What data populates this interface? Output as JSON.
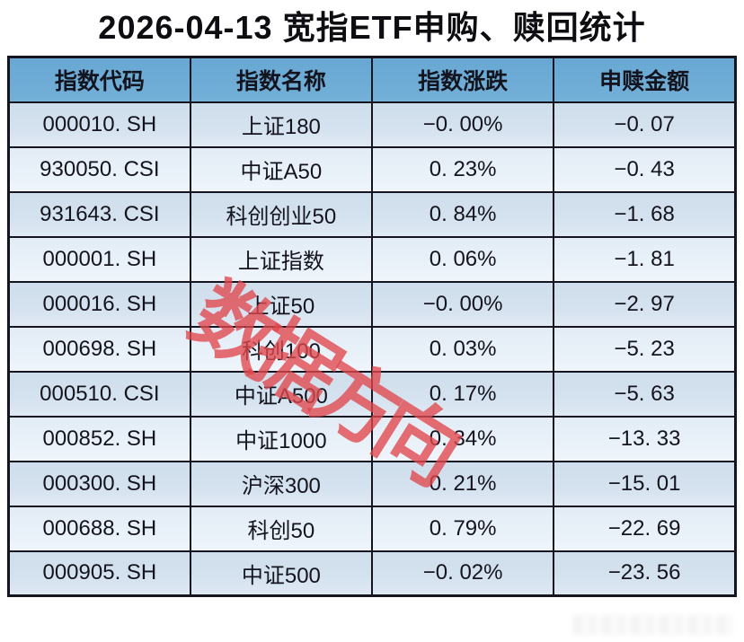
{
  "page": {
    "background": "#ffffff"
  },
  "watermark": {
    "text": "数据方向",
    "color": "#e0464c"
  },
  "faint_watermark": {
    "description": "illegible faint gray watermark, bottom-right corner"
  },
  "styles": {
    "header_bg": "#67a8d3",
    "row_odd_bg": "#d5e2ef",
    "row_even_bg": "#e9f1f9",
    "border_color": "#15151f",
    "text_color": "#14141e"
  },
  "chart_data": {
    "type": "table",
    "title": "2026-04-13 宽指ETF申购、赎回统计",
    "columns": [
      "指数代码",
      "指数名称",
      "指数涨跌",
      "申赎金额"
    ],
    "column_keys": [
      "code",
      "name",
      "change",
      "amount"
    ],
    "rows": [
      {
        "code": "000010. SH",
        "name": "上证180",
        "change": "−0. 00%",
        "amount": "−0. 07"
      },
      {
        "code": "930050. CSI",
        "name": "中证A50",
        "change": "0. 23%",
        "amount": "−0. 43"
      },
      {
        "code": "931643. CSI",
        "name": "科创创业50",
        "change": "0. 84%",
        "amount": "−1. 68"
      },
      {
        "code": "000001. SH",
        "name": "上证指数",
        "change": "0. 06%",
        "amount": "−1. 81"
      },
      {
        "code": "000016. SH",
        "name": "上证50",
        "change": "−0. 00%",
        "amount": "−2. 97"
      },
      {
        "code": "000698. SH",
        "name": "科创100",
        "change": "0. 03%",
        "amount": "−5. 23"
      },
      {
        "code": "000510. CSI",
        "name": "中证A500",
        "change": "0. 17%",
        "amount": "−5. 63"
      },
      {
        "code": "000852. SH",
        "name": "中证1000",
        "change": "0. 34%",
        "amount": "−13. 33"
      },
      {
        "code": "000300. SH",
        "name": "沪深300",
        "change": "0. 21%",
        "amount": "−15. 01"
      },
      {
        "code": "000688. SH",
        "name": "科创50",
        "change": "0. 79%",
        "amount": "−22. 69"
      },
      {
        "code": "000905. SH",
        "name": "中证500",
        "change": "−0. 02%",
        "amount": "−23. 56"
      }
    ]
  }
}
